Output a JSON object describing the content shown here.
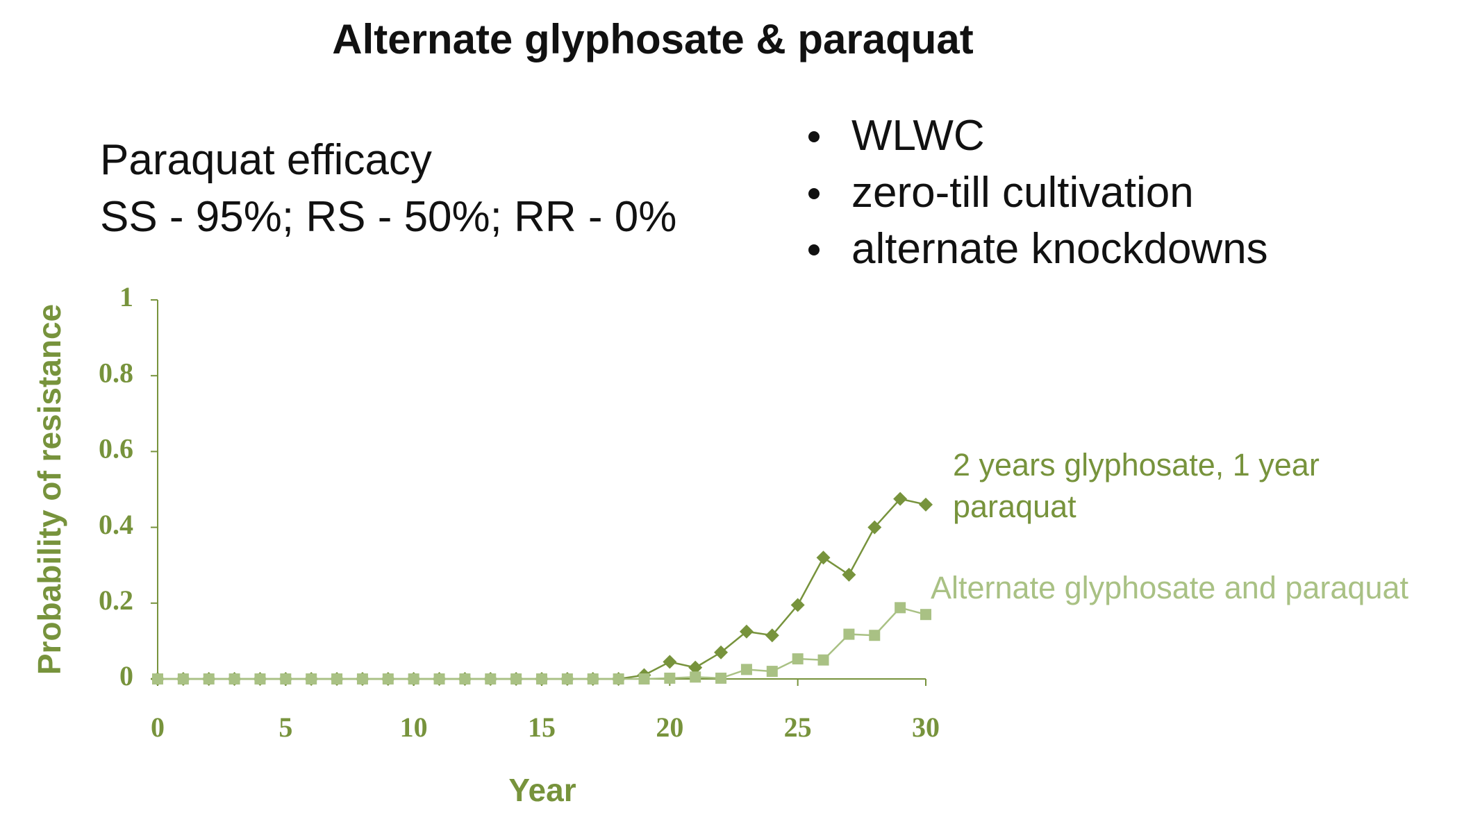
{
  "header": {
    "title": "Alternate glyphosate & paraquat"
  },
  "efficacy": {
    "lines": [
      "Paraquat efficacy",
      "SS - 95%; RS - 50%; RR - 0%"
    ]
  },
  "bullets": {
    "items": [
      "WLWC",
      "zero-till cultivation",
      "alternate knockdowns"
    ]
  },
  "chart_data": {
    "type": "line",
    "x_label": "Year",
    "y_label": "Probability of resistance",
    "x": [
      0,
      1,
      2,
      3,
      4,
      5,
      6,
      7,
      8,
      9,
      10,
      11,
      12,
      13,
      14,
      15,
      16,
      17,
      18,
      19,
      20,
      21,
      22,
      23,
      24,
      25,
      26,
      27,
      28,
      29,
      30
    ],
    "series": [
      {
        "name": "2 years glyphosate, 1 year paraquat",
        "color": "#77933c",
        "marker": "diamond",
        "values": [
          0,
          0,
          0,
          0,
          0,
          0,
          0,
          0,
          0,
          0,
          0,
          0,
          0,
          0,
          0,
          0,
          0,
          0,
          0,
          0.01,
          0.045,
          0.03,
          0.07,
          0.125,
          0.115,
          0.195,
          0.32,
          0.275,
          0.4,
          0.475,
          0.46
        ]
      },
      {
        "name": "Alternate glyphosate and paraquat",
        "color": "#a9c184",
        "marker": "square",
        "values": [
          0,
          0,
          0,
          0,
          0,
          0,
          0,
          0,
          0,
          0,
          0,
          0,
          0,
          0,
          0,
          0,
          0,
          0,
          0,
          0,
          0.002,
          0.005,
          0.002,
          0.025,
          0.02,
          0.053,
          0.05,
          0.118,
          0.115,
          0.188,
          0.17
        ]
      }
    ],
    "xlim": [
      0,
      30
    ],
    "xticks": [
      0,
      5,
      10,
      15,
      20,
      25,
      30
    ],
    "ylim": [
      0,
      1
    ],
    "yticks": [
      0,
      0.2,
      0.4,
      0.6,
      0.8,
      1
    ],
    "axis_color": "#77933c"
  }
}
